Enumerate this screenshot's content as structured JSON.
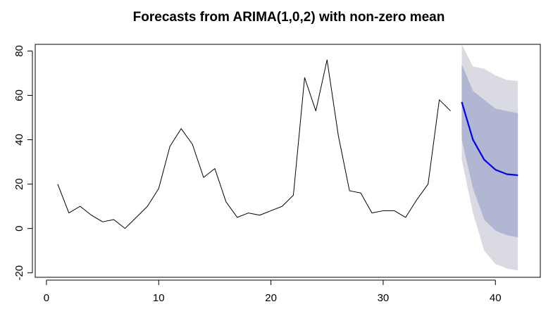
{
  "chart_data": {
    "type": "line",
    "title": "Forecasts from ARIMA(1,0,2) with non-zero mean",
    "xlabel": "",
    "ylabel": "",
    "xlim": [
      -1,
      44
    ],
    "ylim": [
      -22,
      83
    ],
    "x_ticks": [
      0,
      10,
      20,
      30,
      40
    ],
    "y_ticks": [
      -20,
      0,
      20,
      40,
      60,
      80
    ],
    "grid": false,
    "legend": "none",
    "colors": {
      "observed": "#000000",
      "forecast": "#0000ee",
      "band95": "#dadae3",
      "band80": "#b1b6d3"
    },
    "series": [
      {
        "role": "observed",
        "x": [
          1,
          2,
          3,
          4,
          5,
          6,
          7,
          8,
          9,
          10,
          11,
          12,
          13,
          14,
          15,
          16,
          17,
          18,
          19,
          20,
          21,
          22,
          23,
          24,
          25,
          26,
          27,
          28,
          29,
          30,
          31,
          32,
          33,
          34,
          35,
          36
        ],
        "values": [
          20,
          7,
          10,
          6,
          3,
          4,
          0,
          5,
          10,
          18,
          37,
          45,
          38,
          23,
          27,
          12,
          5,
          7,
          6,
          8,
          10,
          15,
          68,
          53,
          76,
          42,
          17,
          16,
          7,
          8,
          8,
          5,
          13,
          20,
          58,
          53
        ]
      },
      {
        "role": "forecast",
        "x": [
          37,
          38,
          39,
          40,
          41,
          42
        ],
        "values": [
          57,
          40,
          31,
          26.5,
          24.5,
          24
        ]
      }
    ],
    "intervals": [
      {
        "level": "95",
        "x": [
          37,
          38,
          39,
          40,
          41,
          42
        ],
        "lower": [
          31,
          7,
          -10,
          -16,
          -18,
          -19
        ],
        "upper": [
          83,
          73,
          72,
          69,
          67,
          66.5
        ]
      },
      {
        "level": "80",
        "x": [
          37,
          38,
          39,
          40,
          41,
          42
        ],
        "lower": [
          40,
          18,
          4,
          -1,
          -3,
          -4
        ],
        "upper": [
          74,
          62,
          58,
          54,
          53,
          52
        ]
      }
    ]
  }
}
